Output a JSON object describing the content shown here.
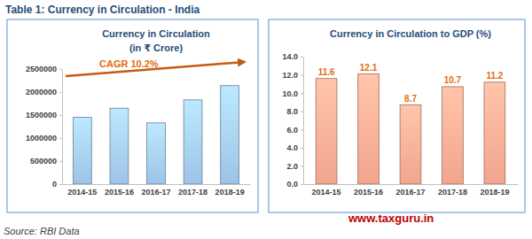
{
  "page_title": "Table 1: Currency in Circulation - India",
  "source": "Source: RBI Data",
  "watermark": "www.taxguru.in",
  "chart_data": [
    {
      "type": "bar",
      "title": "Currency in Circulation",
      "subtitle": "(in ₹ Crore)",
      "categories": [
        "2014-15",
        "2015-16",
        "2016-17",
        "2017-18",
        "2018-19"
      ],
      "values": [
        1450000,
        1650000,
        1330000,
        1830000,
        2140000
      ],
      "color": "#9dc3e6",
      "ylim": [
        0,
        2500000
      ],
      "yticks": [
        0,
        500000,
        1000000,
        1500000,
        2000000,
        2500000
      ],
      "grid": false,
      "data_labels": false,
      "annotation": "CAGR 10.2%"
    },
    {
      "type": "bar",
      "title": "Currency in Circulation to GDP (%)",
      "categories": [
        "2014-15",
        "2015-16",
        "2016-17",
        "2017-18",
        "2018-19"
      ],
      "values": [
        11.6,
        12.1,
        8.7,
        10.7,
        11.2
      ],
      "color": "#f2a58e",
      "ylim": [
        0,
        14
      ],
      "yticks": [
        {
          "value": 0,
          "label": "0.0"
        },
        {
          "value": 2,
          "label": "2.0"
        },
        {
          "value": 4,
          "label": "4.0"
        },
        {
          "value": 6,
          "label": "6.0"
        },
        {
          "value": 8,
          "label": "8.0"
        },
        {
          "value": 10,
          "label": "10.0"
        },
        {
          "value": 12,
          "label": "12.0"
        },
        {
          "value": 14,
          "label": "14.0"
        }
      ],
      "grid": false,
      "data_labels": true
    }
  ]
}
